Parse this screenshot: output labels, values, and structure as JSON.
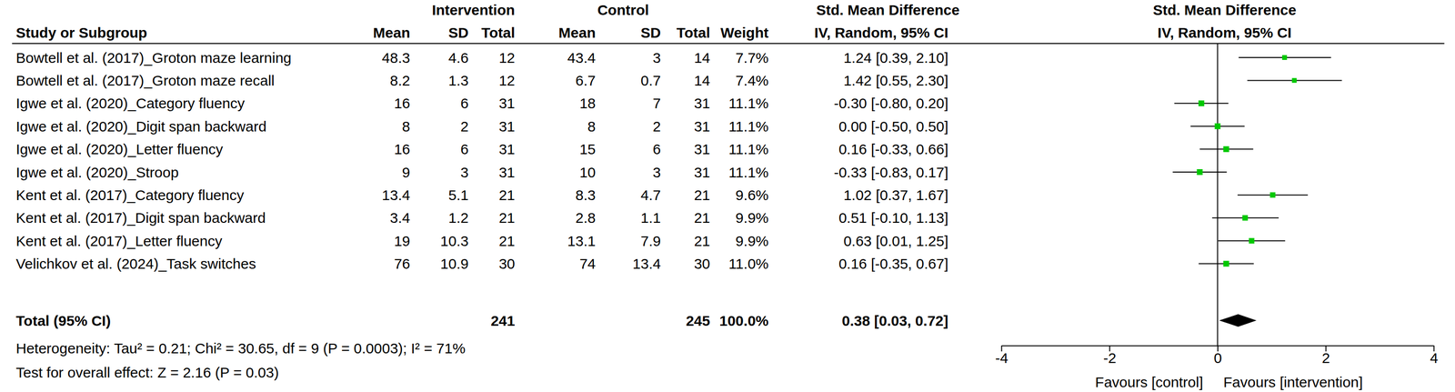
{
  "chart_data": {
    "type": "forest",
    "column_groups": [
      "Intervention",
      "Control",
      "Std. Mean Difference",
      "Std. Mean Difference"
    ],
    "columns": [
      "Study or Subgroup",
      "Mean",
      "SD",
      "Total",
      "Mean",
      "SD",
      "Total",
      "Weight",
      "IV, Random, 95% CI",
      "IV, Random, 95% CI"
    ],
    "studies": [
      {
        "name": "Bowtell et al. (2017)_Groton maze learning",
        "intervention": {
          "mean": 48.3,
          "sd": 4.6,
          "total": 12
        },
        "control": {
          "mean": 43.4,
          "sd": 3,
          "total": 14
        },
        "weight": 7.7,
        "weight_label": "7.7%",
        "smd": 1.24,
        "ci_lower": 0.39,
        "ci_upper": 2.1,
        "ci_label": "1.24 [0.39, 2.10]"
      },
      {
        "name": "Bowtell et al. (2017)_Groton maze recall",
        "intervention": {
          "mean": 8.2,
          "sd": 1.3,
          "total": 12
        },
        "control": {
          "mean": 6.7,
          "sd": 0.7,
          "total": 14
        },
        "weight": 7.4,
        "weight_label": "7.4%",
        "smd": 1.42,
        "ci_lower": 0.55,
        "ci_upper": 2.3,
        "ci_label": "1.42 [0.55, 2.30]"
      },
      {
        "name": "Igwe et al. (2020)_Category fluency",
        "intervention": {
          "mean": 16,
          "sd": 6,
          "total": 31
        },
        "control": {
          "mean": 18,
          "sd": 7,
          "total": 31
        },
        "weight": 11.1,
        "weight_label": "11.1%",
        "smd": -0.3,
        "ci_lower": -0.8,
        "ci_upper": 0.2,
        "ci_label": "-0.30 [-0.80, 0.20]"
      },
      {
        "name": "Igwe et al. (2020)_Digit span backward",
        "intervention": {
          "mean": 8,
          "sd": 2,
          "total": 31
        },
        "control": {
          "mean": 8,
          "sd": 2,
          "total": 31
        },
        "weight": 11.1,
        "weight_label": "11.1%",
        "smd": 0.0,
        "ci_lower": -0.5,
        "ci_upper": 0.5,
        "ci_label": "0.00 [-0.50, 0.50]"
      },
      {
        "name": "Igwe et al. (2020)_Letter fluency",
        "intervention": {
          "mean": 16,
          "sd": 6,
          "total": 31
        },
        "control": {
          "mean": 15,
          "sd": 6,
          "total": 31
        },
        "weight": 11.1,
        "weight_label": "11.1%",
        "smd": 0.16,
        "ci_lower": -0.33,
        "ci_upper": 0.66,
        "ci_label": "0.16 [-0.33, 0.66]"
      },
      {
        "name": "Igwe et al. (2020)_Stroop",
        "intervention": {
          "mean": 9,
          "sd": 3,
          "total": 31
        },
        "control": {
          "mean": 10,
          "sd": 3,
          "total": 31
        },
        "weight": 11.1,
        "weight_label": "11.1%",
        "smd": -0.33,
        "ci_lower": -0.83,
        "ci_upper": 0.17,
        "ci_label": "-0.33 [-0.83, 0.17]"
      },
      {
        "name": "Kent et al. (2017)_Category fluency",
        "intervention": {
          "mean": 13.4,
          "sd": 5.1,
          "total": 21
        },
        "control": {
          "mean": 8.3,
          "sd": 4.7,
          "total": 21
        },
        "weight": 9.6,
        "weight_label": "9.6%",
        "smd": 1.02,
        "ci_lower": 0.37,
        "ci_upper": 1.67,
        "ci_label": "1.02 [0.37, 1.67]"
      },
      {
        "name": "Kent et al. (2017)_Digit span backward",
        "intervention": {
          "mean": 3.4,
          "sd": 1.2,
          "total": 21
        },
        "control": {
          "mean": 2.8,
          "sd": 1.1,
          "total": 21
        },
        "weight": 9.9,
        "weight_label": "9.9%",
        "smd": 0.51,
        "ci_lower": -0.1,
        "ci_upper": 1.13,
        "ci_label": "0.51 [-0.10, 1.13]"
      },
      {
        "name": "Kent et al. (2017)_Letter fluency",
        "intervention": {
          "mean": 19,
          "sd": 10.3,
          "total": 21
        },
        "control": {
          "mean": 13.1,
          "sd": 7.9,
          "total": 21
        },
        "weight": 9.9,
        "weight_label": "9.9%",
        "smd": 0.63,
        "ci_lower": 0.01,
        "ci_upper": 1.25,
        "ci_label": "0.63 [0.01, 1.25]"
      },
      {
        "name": "Velichkov et al. (2024)_Task switches",
        "intervention": {
          "mean": 76,
          "sd": 10.9,
          "total": 30
        },
        "control": {
          "mean": 74,
          "sd": 13.4,
          "total": 30
        },
        "weight": 11.0,
        "weight_label": "11.0%",
        "smd": 0.16,
        "ci_lower": -0.35,
        "ci_upper": 0.67,
        "ci_label": "0.16 [-0.35, 0.67]"
      }
    ],
    "total": {
      "label": "Total (95% CI)",
      "intervention_total": 241,
      "control_total": 245,
      "weight_label": "100.0%",
      "smd": 0.38,
      "ci_lower": 0.03,
      "ci_upper": 0.72,
      "ci_label": "0.38 [0.03, 0.72]"
    },
    "heterogeneity": "Heterogeneity: Tau² = 0.21; Chi² = 30.65, df = 9 (P = 0.0003); I² = 71%",
    "overall_effect": "Test for overall effect: Z = 2.16 (P = 0.03)",
    "favours": {
      "left": "Favours [control]",
      "right": "Favours [intervention]"
    },
    "xlim": [
      -4,
      4
    ],
    "xticks": [
      -4,
      -2,
      0,
      2,
      4
    ],
    "marker": "square",
    "color": "#00c800"
  }
}
